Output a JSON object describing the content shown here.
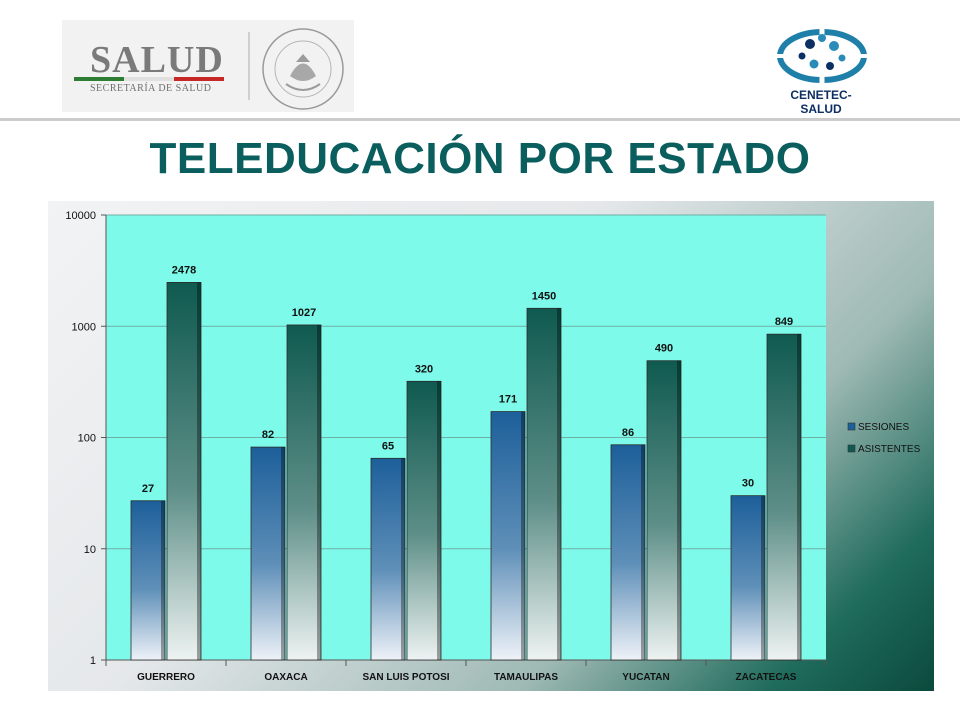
{
  "header": {
    "salud_logo": {
      "word": "SALUD",
      "subtitle": "SECRETARÍA DE SALUD"
    },
    "seal_text": "ESTADOS UNIDOS MEXICANOS",
    "cenetec_logo": {
      "label": "CENETEC-SALUD"
    }
  },
  "colors": {
    "title": "#0b5e5e",
    "plot_background": "#7efaea",
    "sesiones": "#1d5f9a",
    "asistentes": "#0f5a50"
  },
  "title": "TELEDUCACIÓN POR ESTADO",
  "chart_data": {
    "type": "bar",
    "yscale": "log",
    "ylim": [
      1,
      10000
    ],
    "yticks": [
      "1",
      "10",
      "100",
      "1000",
      "10000"
    ],
    "categories": [
      "GUERRERO",
      "OAXACA",
      "SAN LUIS POTOSI",
      "TAMAULIPAS",
      "YUCATAN",
      "ZACATECAS"
    ],
    "series": [
      {
        "name": "SESIONES",
        "values": [
          27,
          82,
          65,
          171,
          86,
          30
        ]
      },
      {
        "name": "ASISTENTES",
        "values": [
          2478,
          1027,
          320,
          1450,
          490,
          849
        ]
      }
    ],
    "legend": "right",
    "grid": true
  }
}
